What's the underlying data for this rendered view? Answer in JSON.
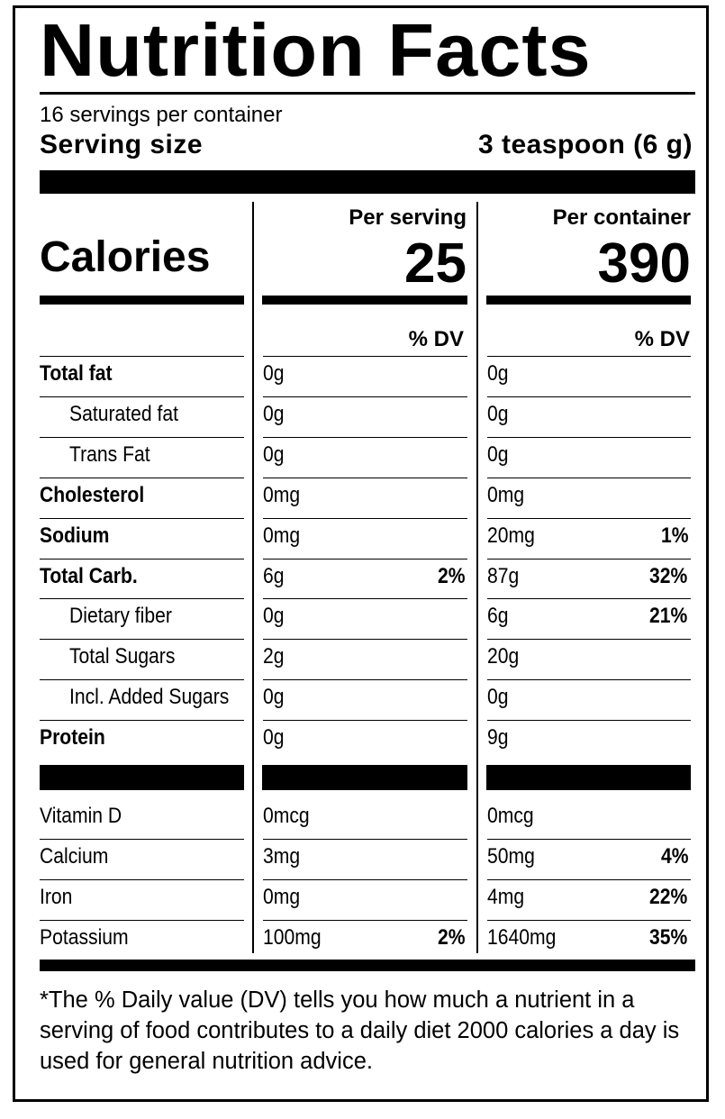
{
  "label": {
    "title": "Nutrition Facts",
    "servings_per_container": "16 servings per container",
    "serving_size_label": "Serving size",
    "serving_size_value": "3 teaspoon (6 g)",
    "calories_label": "Calories",
    "per_serving_label": "Per serving",
    "per_container_label": "Per container",
    "calories_per_serving": "25",
    "calories_per_container": "390",
    "dv_label": "% DV",
    "nutrients": [
      {
        "name": "Total fat",
        "serving": "0g",
        "serving_dv": "",
        "container": "0g",
        "container_dv": ""
      },
      {
        "name": "Saturated fat",
        "serving": "0g",
        "serving_dv": "",
        "container": "0g",
        "container_dv": ""
      },
      {
        "name": "Trans Fat",
        "serving": "0g",
        "serving_dv": "",
        "container": "0g",
        "container_dv": ""
      },
      {
        "name": "Cholesterol",
        "serving": "0mg",
        "serving_dv": "",
        "container": "0mg",
        "container_dv": ""
      },
      {
        "name": "Sodium",
        "serving": "0mg",
        "serving_dv": "",
        "container": "20mg",
        "container_dv": "1%"
      },
      {
        "name": "Total Carb.",
        "serving": "6g",
        "serving_dv": "2%",
        "container": "87g",
        "container_dv": "32%"
      },
      {
        "name": "Dietary fiber",
        "serving": "0g",
        "serving_dv": "",
        "container": "6g",
        "container_dv": "21%"
      },
      {
        "name": "Total Sugars",
        "serving": "2g",
        "serving_dv": "",
        "container": "20g",
        "container_dv": ""
      },
      {
        "name": "Incl. Added Sugars",
        "serving": "0g",
        "serving_dv": "",
        "container": "0g",
        "container_dv": ""
      },
      {
        "name": "Protein",
        "serving": "0g",
        "serving_dv": "",
        "container": "9g",
        "container_dv": ""
      }
    ],
    "vitamins": [
      {
        "name": "Vitamin D",
        "serving": "0mcg",
        "serving_dv": "",
        "container": "0mcg",
        "container_dv": ""
      },
      {
        "name": "Calcium",
        "serving": "3mg",
        "serving_dv": "",
        "container": "50mg",
        "container_dv": "4%"
      },
      {
        "name": "Iron",
        "serving": "0mg",
        "serving_dv": "",
        "container": "4mg",
        "container_dv": "22%"
      },
      {
        "name": "Potassium",
        "serving": "100mg",
        "serving_dv": "2%",
        "container": "1640mg",
        "container_dv": "35%"
      }
    ],
    "footnote": "*The % Daily value (DV) tells you how much a nutrient in a serving of food contributes to a daily diet 2000 calories a day is used for general nutrition advice."
  }
}
